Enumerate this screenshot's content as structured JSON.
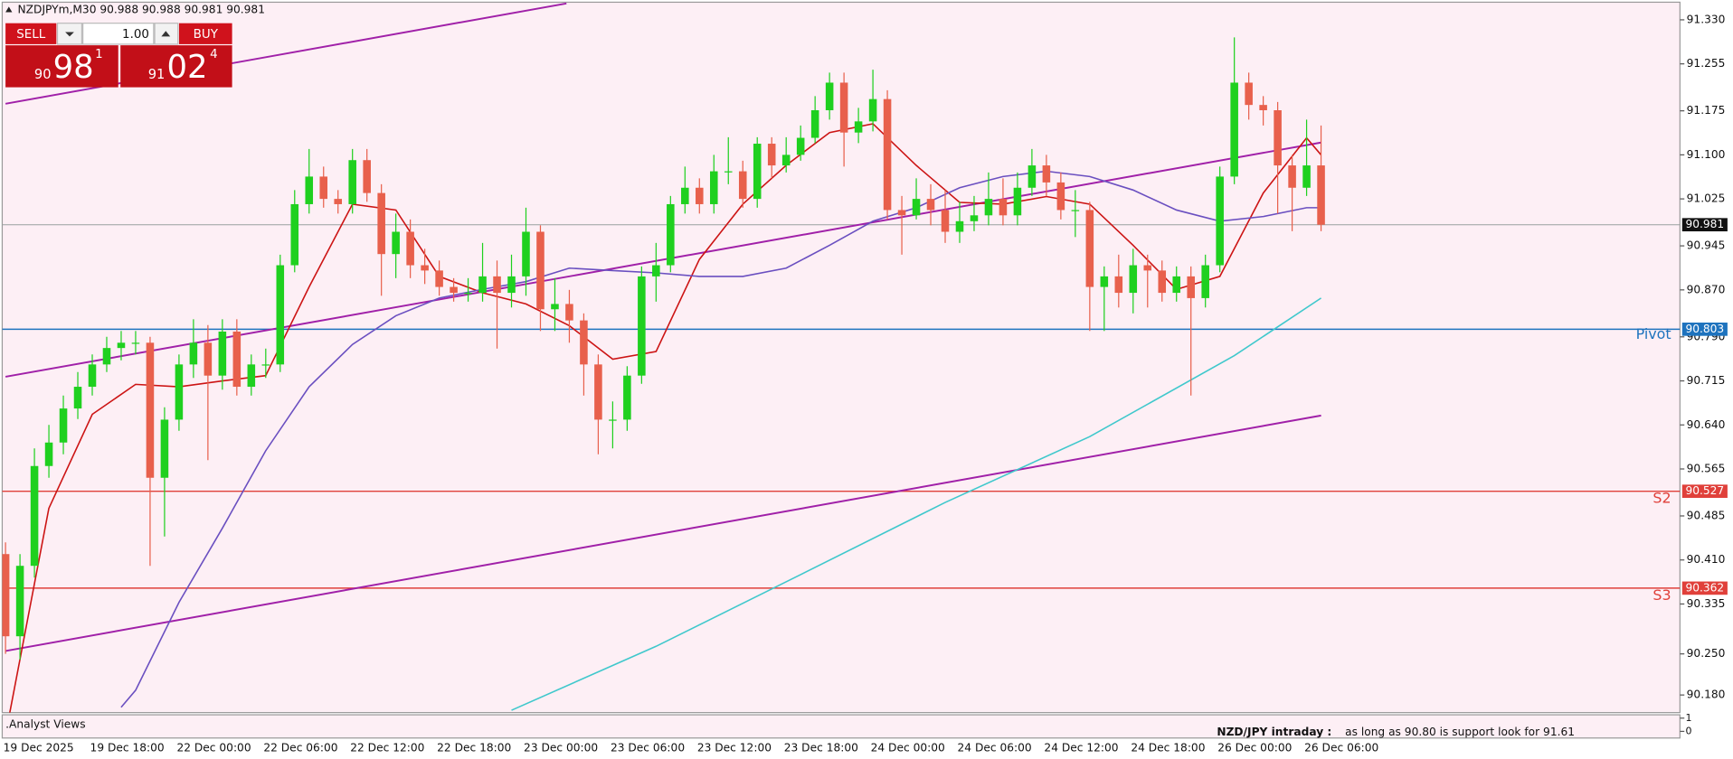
{
  "chart_data": {
    "type": "candlestick",
    "title": "NZDJPYm,M30  90.988 90.988 90.981 90.981",
    "categories": [
      "19 Dec 2025",
      null,
      null,
      null,
      null,
      null,
      "19 Dec 18:00",
      null,
      null,
      null,
      null,
      null,
      "22 Dec 00:00",
      null,
      null,
      null,
      null,
      null,
      "22 Dec 06:00",
      null,
      null,
      null,
      null,
      null,
      "22 Dec 12:00",
      null,
      null,
      null,
      null,
      null,
      "22 Dec 18:00",
      null,
      null,
      null,
      null,
      null,
      "23 Dec 00:00",
      null,
      null,
      null,
      null,
      null,
      "23 Dec 06:00",
      null,
      null,
      null,
      null,
      null,
      "23 Dec 12:00",
      null,
      null,
      null,
      null,
      null,
      "23 Dec 18:00",
      null,
      null,
      null,
      null,
      null,
      "24 Dec 00:00",
      null,
      null,
      null,
      null,
      null,
      "24 Dec 06:00",
      null,
      null,
      null,
      null,
      null,
      "24 Dec 12:00",
      null,
      null,
      null,
      null,
      null,
      "24 Dec 18:00",
      null,
      null,
      null,
      null,
      null,
      "26 Dec 00:00",
      null,
      null,
      null,
      null,
      null,
      "26 Dec 06:00",
      null
    ],
    "open": [
      90.42,
      90.28,
      90.4,
      90.57,
      90.61,
      90.668,
      90.705,
      90.743,
      90.771,
      90.78,
      90.78,
      90.55,
      90.649,
      90.743,
      90.78,
      90.724,
      90.799,
      90.705,
      90.743,
      90.743,
      90.912,
      91.016,
      91.063,
      91.025,
      91.016,
      91.091,
      91.035,
      90.931,
      90.969,
      90.912,
      90.903,
      90.875,
      90.865,
      90.865,
      90.893,
      90.865,
      90.893,
      90.969,
      90.837,
      90.846,
      90.818,
      90.743,
      90.649,
      90.649,
      90.724,
      90.893,
      90.912,
      91.016,
      91.044,
      91.016,
      91.072,
      91.072,
      91.025,
      91.119,
      91.082,
      91.1,
      91.129,
      91.176,
      91.223,
      91.138,
      91.157,
      91.195,
      91.006,
      90.997,
      91.025,
      91.006,
      90.969,
      90.987,
      90.997,
      91.025,
      90.997,
      91.044,
      91.082,
      91.053,
      91.006,
      91.006,
      90.875,
      90.893,
      90.865,
      90.912,
      90.903,
      90.865,
      90.893,
      90.856,
      90.912,
      91.063,
      91.223,
      91.185,
      91.176,
      91.082,
      91.044,
      91.082
    ],
    "high": [
      90.44,
      90.42,
      90.6,
      90.64,
      90.69,
      90.73,
      90.76,
      90.79,
      90.8,
      90.8,
      90.79,
      90.67,
      90.76,
      90.82,
      90.81,
      90.82,
      90.82,
      90.76,
      90.77,
      90.93,
      91.04,
      91.11,
      91.08,
      91.04,
      91.11,
      91.11,
      91.05,
      91.0,
      90.99,
      90.94,
      90.92,
      90.89,
      90.89,
      90.95,
      90.92,
      90.93,
      91.01,
      90.98,
      90.89,
      90.87,
      90.83,
      90.76,
      90.68,
      90.74,
      90.91,
      90.95,
      91.03,
      91.08,
      91.06,
      91.1,
      91.13,
      91.09,
      91.13,
      91.13,
      91.13,
      91.15,
      91.2,
      91.24,
      91.24,
      91.18,
      91.245,
      91.21,
      91.03,
      91.06,
      91.05,
      91.04,
      91.02,
      91.03,
      91.07,
      91.06,
      91.07,
      91.11,
      91.1,
      91.07,
      91.04,
      91.02,
      90.91,
      90.93,
      90.94,
      90.93,
      90.92,
      90.91,
      90.91,
      90.93,
      91.08,
      91.3,
      91.24,
      91.2,
      91.19,
      91.1,
      91.16,
      91.15
    ],
    "low": [
      90.25,
      90.24,
      90.38,
      90.55,
      90.59,
      90.65,
      90.69,
      90.73,
      90.75,
      90.76,
      90.4,
      90.45,
      90.63,
      90.72,
      90.58,
      90.7,
      90.69,
      90.69,
      90.72,
      90.73,
      90.9,
      91.0,
      91.01,
      91.0,
      91.0,
      91.02,
      90.86,
      90.89,
      90.89,
      90.88,
      90.86,
      90.85,
      90.85,
      90.85,
      90.77,
      90.84,
      90.86,
      90.8,
      90.8,
      90.78,
      90.69,
      90.59,
      90.6,
      90.63,
      90.71,
      90.85,
      90.9,
      91.0,
      91.0,
      91.0,
      91.05,
      91.01,
      91.01,
      91.06,
      91.07,
      91.09,
      91.12,
      91.16,
      91.08,
      91.12,
      91.14,
      90.99,
      90.93,
      90.99,
      90.98,
      90.95,
      90.95,
      90.97,
      90.98,
      90.98,
      90.98,
      91.03,
      91.03,
      90.99,
      90.96,
      90.8,
      90.8,
      90.84,
      90.83,
      90.84,
      90.85,
      90.85,
      90.69,
      90.84,
      90.9,
      91.05,
      91.16,
      91.15,
      91.0,
      90.97,
      91.03,
      90.97
    ],
    "close": [
      90.28,
      90.4,
      90.57,
      90.61,
      90.668,
      90.705,
      90.743,
      90.771,
      90.78,
      90.78,
      90.55,
      90.649,
      90.743,
      90.78,
      90.724,
      90.799,
      90.705,
      90.743,
      90.743,
      90.912,
      91.016,
      91.063,
      91.025,
      91.016,
      91.091,
      91.035,
      90.931,
      90.969,
      90.912,
      90.903,
      90.875,
      90.865,
      90.865,
      90.893,
      90.865,
      90.893,
      90.969,
      90.837,
      90.846,
      90.818,
      90.743,
      90.649,
      90.649,
      90.724,
      90.893,
      90.912,
      91.016,
      91.044,
      91.016,
      91.072,
      91.072,
      91.025,
      91.119,
      91.082,
      91.1,
      91.129,
      91.176,
      91.223,
      91.138,
      91.157,
      91.195,
      91.006,
      90.997,
      91.025,
      91.006,
      90.969,
      90.987,
      90.997,
      91.025,
      90.997,
      91.044,
      91.082,
      91.053,
      91.006,
      91.006,
      90.875,
      90.893,
      90.865,
      90.912,
      90.903,
      90.865,
      90.893,
      90.856,
      90.912,
      91.063,
      91.223,
      91.185,
      91.176,
      91.082,
      91.044,
      91.082,
      90.981
    ],
    "up_color": "#1fd01f",
    "down_color": "#e8604c",
    "series": [
      {
        "type": "line",
        "color": "#cc1414",
        "x": [
          0,
          3,
          6,
          9,
          12,
          15,
          18,
          21,
          24,
          27,
          30,
          33,
          36,
          39,
          42,
          45,
          48,
          51,
          54,
          57,
          60,
          63,
          66,
          69,
          72,
          75,
          78,
          81,
          84,
          87,
          90,
          91
        ],
        "values": [
          90.112,
          90.498,
          90.658,
          90.709,
          90.705,
          90.715,
          90.724,
          90.875,
          91.016,
          91.006,
          90.893,
          90.865,
          90.846,
          90.809,
          90.752,
          90.765,
          90.922,
          91.016,
          91.082,
          91.138,
          91.153,
          91.082,
          91.019,
          91.016,
          91.029,
          91.016,
          90.946,
          90.871,
          90.893,
          91.035,
          91.129,
          91.1
        ]
      },
      {
        "type": "line",
        "color": "#6a4fc0",
        "x": [
          8,
          9,
          12,
          15,
          18,
          21,
          24,
          27,
          30,
          33,
          36,
          39,
          42,
          45,
          48,
          51,
          54,
          57,
          60,
          63,
          66,
          69,
          72,
          75,
          78,
          81,
          84,
          87,
          90,
          91
        ],
        "values": [
          90.159,
          90.188,
          90.338,
          90.464,
          90.596,
          90.705,
          90.777,
          90.826,
          90.856,
          90.871,
          90.884,
          90.907,
          90.903,
          90.899,
          90.893,
          90.893,
          90.907,
          90.946,
          90.987,
          91.01,
          91.044,
          91.063,
          91.072,
          91.063,
          91.04,
          91.006,
          90.987,
          90.995,
          91.01,
          91.01
        ]
      },
      {
        "type": "line",
        "color": "#3fc8cc",
        "x": [
          35,
          45,
          55,
          65,
          75,
          85,
          91
        ],
        "values": [
          90.154,
          90.263,
          90.385,
          90.508,
          90.62,
          90.758,
          90.856
        ]
      }
    ],
    "trendlines": [
      {
        "color": "#a020a8",
        "x": [
          0,
          38.8
        ],
        "values": [
          91.187,
          91.358
        ]
      },
      {
        "color": "#a020a8",
        "x": [
          0,
          91
        ],
        "values": [
          90.722,
          91.121
        ]
      },
      {
        "color": "#a020a8",
        "x": [
          0,
          91
        ],
        "values": [
          90.255,
          90.656
        ]
      }
    ],
    "levels": [
      {
        "value": 90.981,
        "color": "#9aa0a0",
        "box_color": "#111111"
      },
      {
        "name": "Pivot",
        "value": 90.803,
        "color": "#1e73be"
      },
      {
        "name": "S2",
        "value": 90.527,
        "color": "#e0403a"
      },
      {
        "name": "S3",
        "value": 90.362,
        "color": "#e0403a"
      }
    ],
    "ylim": [
      90.15,
      91.36
    ],
    "yticks": [
      {
        "value": 91.33,
        "label": "91.330"
      },
      {
        "value": 91.255,
        "label": "91.255"
      },
      {
        "value": 91.175,
        "label": "91.175"
      },
      {
        "value": 91.1,
        "label": "91.100"
      },
      {
        "value": 91.025,
        "label": "91.025"
      },
      {
        "value": 90.945,
        "label": "90.945"
      },
      {
        "value": 90.87,
        "label": "90.870"
      },
      {
        "value": 90.79,
        "label": "90.790"
      },
      {
        "value": 90.715,
        "label": "90.715"
      },
      {
        "value": 90.64,
        "label": "90.640"
      },
      {
        "value": 90.565,
        "label": "90.565"
      },
      {
        "value": 90.485,
        "label": "90.485"
      },
      {
        "value": 90.41,
        "label": "90.410"
      },
      {
        "value": 90.335,
        "label": "90.335"
      },
      {
        "value": 90.25,
        "label": "90.250"
      },
      {
        "value": 90.18,
        "label": "90.180"
      }
    ]
  },
  "trade_panel": {
    "sell": "SELL",
    "lot": "1.00",
    "buy": "BUY",
    "bid": [
      "90",
      "98",
      "1"
    ],
    "ask": [
      "91",
      "02",
      "4"
    ]
  },
  "indicator_panel": {
    "title": ".Analyst Views",
    "note_label": "NZD/JPY intraday :",
    "note_text": "as long as 90.80 is support look for 91.61",
    "ylim": [
      0,
      1
    ],
    "yticks": [
      1,
      0
    ]
  }
}
